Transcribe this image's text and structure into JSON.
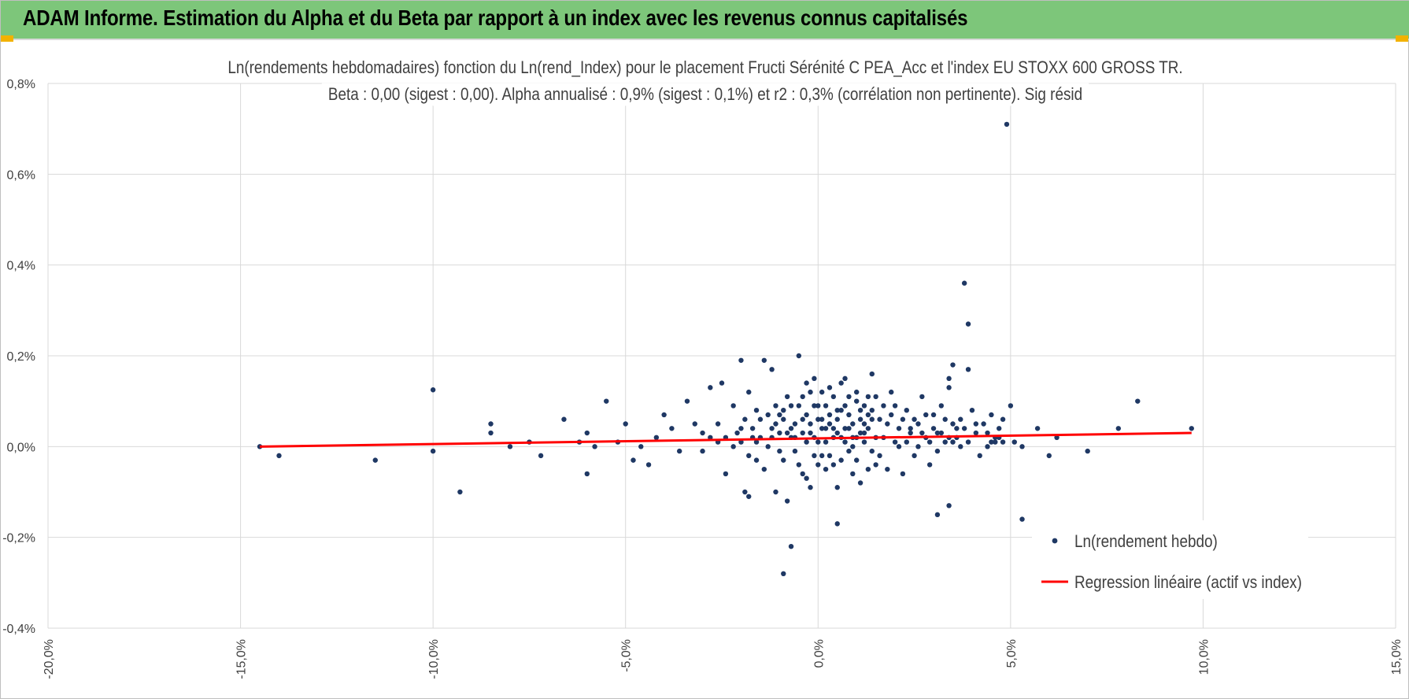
{
  "header": {
    "title": "ADAM Informe. Estimation du Alpha et du Beta par rapport à un index avec les revenus connus capitalisés"
  },
  "colors": {
    "banner": "#7dc67a",
    "point": "#1f3864",
    "regression": "#ff0000",
    "grid": "#d9d9d9",
    "text": "#404040"
  },
  "chart_data": {
    "type": "scatter",
    "title_lines": [
      "Ln(rendements hebdomadaires) fonction du Ln(rend_Index) pour le placement Fructi Sérénité C PEA_Acc et l'index EU STOXX 600 GROSS TR.",
      "Beta : 0,00 (sigest : 0,00).  Alpha annualisé : 0,9% (sigest : 0,1%) et r2 : 0,3% (corrélation non pertinente). Sig résid"
    ],
    "xlabel": "",
    "ylabel": "",
    "xlim": [
      -0.2,
      0.15
    ],
    "ylim": [
      -0.004,
      0.008
    ],
    "x_ticks": [
      -0.2,
      -0.15,
      -0.1,
      -0.05,
      0.0,
      0.05,
      0.1,
      0.15
    ],
    "x_tick_labels": [
      "-20,0%",
      "-15,0%",
      "-10,0%",
      "-5,0%",
      "0,0%",
      "5,0%",
      "10,0%",
      "15,0%"
    ],
    "y_ticks": [
      -0.004,
      -0.002,
      0.0,
      0.002,
      0.004,
      0.006,
      0.008
    ],
    "y_tick_labels": [
      "-0,4%",
      "-0,2%",
      "0,0%",
      "0,2%",
      "0,4%",
      "0,6%",
      "0,8%"
    ],
    "grid": true,
    "legend_position": "lower-right",
    "series": [
      {
        "name": "Ln(rendement hebdo)",
        "type": "scatter",
        "color": "#1f3864",
        "points": [
          [
            -0.145,
            0.0
          ],
          [
            -0.14,
            -0.0002
          ],
          [
            -0.115,
            -0.0003
          ],
          [
            -0.1,
            0.00125
          ],
          [
            -0.1,
            -0.0001
          ],
          [
            -0.093,
            -0.001
          ],
          [
            -0.085,
            0.0005
          ],
          [
            -0.085,
            0.0003
          ],
          [
            -0.08,
            0.0
          ],
          [
            -0.075,
            0.0001
          ],
          [
            -0.072,
            -0.0002
          ],
          [
            -0.066,
            0.0006
          ],
          [
            -0.062,
            0.0001
          ],
          [
            -0.06,
            0.0003
          ],
          [
            -0.06,
            -0.0006
          ],
          [
            -0.058,
            0.0
          ],
          [
            -0.055,
            0.001
          ],
          [
            -0.052,
            0.0001
          ],
          [
            -0.05,
            0.0005
          ],
          [
            -0.048,
            -0.0003
          ],
          [
            -0.046,
            0.0
          ],
          [
            -0.044,
            -0.0004
          ],
          [
            -0.042,
            0.0002
          ],
          [
            -0.04,
            0.0007
          ],
          [
            -0.038,
            0.0004
          ],
          [
            -0.036,
            -0.0001
          ],
          [
            -0.034,
            0.001
          ],
          [
            -0.032,
            0.0005
          ],
          [
            -0.03,
            0.0003
          ],
          [
            -0.028,
            0.0013
          ],
          [
            -0.026,
            0.0001
          ],
          [
            -0.024,
            -0.0006
          ],
          [
            -0.022,
            0.0009
          ],
          [
            -0.02,
            0.0004
          ],
          [
            -0.018,
            0.0012
          ],
          [
            -0.016,
            -0.0003
          ],
          [
            -0.015,
            0.0006
          ],
          [
            -0.014,
            0.0019
          ],
          [
            -0.013,
            0.0
          ],
          [
            -0.012,
            0.0017
          ],
          [
            -0.011,
            -0.001
          ],
          [
            -0.01,
            0.0003
          ],
          [
            -0.009,
            0.0008
          ],
          [
            -0.008,
            -0.0012
          ],
          [
            -0.007,
            0.0002
          ],
          [
            -0.006,
            0.0005
          ],
          [
            -0.005,
            0.002
          ],
          [
            -0.004,
            0.0011
          ],
          [
            -0.003,
            -0.0007
          ],
          [
            -0.002,
            0.0003
          ],
          [
            -0.001,
            0.0009
          ],
          [
            0.0,
            0.0001
          ],
          [
            0.001,
            0.0006
          ],
          [
            0.002,
            -0.0005
          ],
          [
            0.003,
            0.0013
          ],
          [
            0.004,
            0.0002
          ],
          [
            0.005,
            0.0008
          ],
          [
            0.006,
            -0.0003
          ],
          [
            0.007,
            0.0015
          ],
          [
            0.008,
            0.0004
          ],
          [
            0.009,
            0.0
          ],
          [
            0.01,
            0.001
          ],
          [
            0.011,
            -0.0008
          ],
          [
            0.012,
            0.0003
          ],
          [
            0.013,
            0.0007
          ],
          [
            0.014,
            0.0016
          ],
          [
            0.015,
            0.0002
          ],
          [
            0.016,
            -0.0002
          ],
          [
            0.017,
            0.0009
          ],
          [
            0.018,
            0.0005
          ],
          [
            0.019,
            0.0012
          ],
          [
            0.02,
            0.0001
          ],
          [
            0.021,
            0.0004
          ],
          [
            0.022,
            -0.0006
          ],
          [
            0.023,
            0.0008
          ],
          [
            0.024,
            0.0003
          ],
          [
            0.025,
            0.0006
          ],
          [
            0.026,
            0.0
          ],
          [
            0.027,
            0.0011
          ],
          [
            0.028,
            0.0002
          ],
          [
            0.029,
            -0.0004
          ],
          [
            0.03,
            0.0007
          ],
          [
            0.031,
            0.0003
          ],
          [
            0.032,
            0.0009
          ],
          [
            0.033,
            0.0001
          ],
          [
            0.034,
            0.0013
          ],
          [
            0.035,
            0.0005
          ],
          [
            0.036,
            0.0002
          ],
          [
            0.037,
            0.0006
          ],
          [
            0.038,
            0.0004
          ],
          [
            0.039,
            0.0001
          ],
          [
            0.04,
            0.0008
          ],
          [
            0.041,
            0.0003
          ],
          [
            0.042,
            -0.0002
          ],
          [
            0.043,
            0.0005
          ],
          [
            0.044,
            0.0
          ],
          [
            0.045,
            0.0007
          ],
          [
            0.046,
            0.0002
          ],
          [
            0.047,
            0.0004
          ],
          [
            0.048,
            0.0001
          ],
          [
            -0.004,
            -0.0006
          ],
          [
            -0.003,
            0.0014
          ],
          [
            -0.002,
            -0.0009
          ],
          [
            -0.001,
            0.0015
          ],
          [
            0.0,
            -0.0004
          ],
          [
            0.001,
            0.0012
          ],
          [
            0.002,
            0.0004
          ],
          [
            0.003,
            -0.0002
          ],
          [
            0.004,
            0.0011
          ],
          [
            0.005,
            -0.0009
          ],
          [
            0.006,
            0.0014
          ],
          [
            0.007,
            0.0001
          ],
          [
            0.008,
            0.0007
          ],
          [
            0.009,
            -0.0006
          ],
          [
            0.01,
            0.0012
          ],
          [
            0.011,
            0.0003
          ],
          [
            0.012,
            0.0009
          ],
          [
            0.013,
            -0.0005
          ],
          [
            0.014,
            0.0006
          ],
          [
            0.015,
            0.0011
          ],
          [
            -0.01,
            0.0007
          ],
          [
            -0.009,
            -0.0003
          ],
          [
            -0.008,
            0.0011
          ],
          [
            -0.007,
            0.0004
          ],
          [
            -0.006,
            -0.0001
          ],
          [
            -0.005,
            0.0009
          ],
          [
            -0.004,
            0.0003
          ],
          [
            -0.003,
            0.0007
          ],
          [
            -0.002,
            0.0012
          ],
          [
            -0.001,
            0.0002
          ],
          [
            0.0,
            0.0006
          ],
          [
            0.001,
            -0.0002
          ],
          [
            0.002,
            0.0009
          ],
          [
            0.003,
            0.0005
          ],
          [
            0.004,
            -0.0004
          ],
          [
            0.005,
            0.0003
          ],
          [
            0.006,
            0.0008
          ],
          [
            0.007,
            0.0004
          ],
          [
            0.008,
            0.0011
          ],
          [
            0.009,
            0.0002
          ],
          [
            0.01,
            -0.0003
          ],
          [
            0.011,
            0.0008
          ],
          [
            0.012,
            0.0005
          ],
          [
            0.013,
            0.0011
          ],
          [
            0.014,
            -0.0001
          ],
          [
            -0.012,
            0.0002
          ],
          [
            -0.011,
            0.0005
          ],
          [
            -0.01,
            -0.0001
          ],
          [
            -0.009,
            0.0006
          ],
          [
            -0.008,
            0.0003
          ],
          [
            -0.007,
            0.0009
          ],
          [
            -0.006,
            0.0002
          ],
          [
            -0.005,
            -0.0004
          ],
          [
            -0.004,
            0.0006
          ],
          [
            -0.003,
            0.0001
          ],
          [
            -0.002,
            0.0005
          ],
          [
            -0.001,
            -0.0002
          ],
          [
            0.0,
            0.0009
          ],
          [
            0.001,
            0.0004
          ],
          [
            0.002,
            0.0001
          ],
          [
            0.003,
            0.0007
          ],
          [
            0.004,
            0.0004
          ],
          [
            0.005,
            0.0006
          ],
          [
            0.006,
            0.0002
          ],
          [
            0.007,
            0.0009
          ],
          [
            0.008,
            -0.0001
          ],
          [
            0.009,
            0.0005
          ],
          [
            0.01,
            0.0002
          ],
          [
            0.011,
            0.0006
          ],
          [
            0.012,
            0.0001
          ],
          [
            0.013,
            0.0004
          ],
          [
            0.014,
            0.0008
          ],
          [
            0.015,
            -0.0004
          ],
          [
            0.016,
            0.0006
          ],
          [
            0.017,
            0.0002
          ],
          [
            0.018,
            -0.0005
          ],
          [
            0.019,
            0.0007
          ],
          [
            0.02,
            0.0009
          ],
          [
            0.021,
            0.0
          ],
          [
            0.022,
            0.0006
          ],
          [
            0.023,
            0.0001
          ],
          [
            0.024,
            0.0004
          ],
          [
            0.025,
            -0.0002
          ],
          [
            0.026,
            0.0005
          ],
          [
            0.027,
            0.0003
          ],
          [
            0.028,
            0.0007
          ],
          [
            0.029,
            0.0001
          ],
          [
            0.03,
            0.0004
          ],
          [
            0.031,
            -0.0001
          ],
          [
            0.032,
            0.0003
          ],
          [
            0.033,
            0.0006
          ],
          [
            0.034,
            0.0002
          ],
          [
            0.035,
            0.0001
          ],
          [
            0.036,
            0.0004
          ],
          [
            0.037,
            0.0
          ],
          [
            -0.02,
            0.0001
          ],
          [
            -0.019,
            0.0006
          ],
          [
            -0.018,
            -0.0002
          ],
          [
            -0.017,
            0.0004
          ],
          [
            -0.016,
            0.0008
          ],
          [
            -0.015,
            0.0002
          ],
          [
            -0.014,
            -0.0005
          ],
          [
            -0.013,
            0.0007
          ],
          [
            -0.012,
            0.0004
          ],
          [
            -0.011,
            0.0009
          ],
          [
            -0.03,
            -0.0001
          ],
          [
            -0.028,
            0.0002
          ],
          [
            -0.026,
            0.0005
          ],
          [
            -0.024,
            0.0002
          ],
          [
            -0.022,
            0.0
          ],
          [
            -0.021,
            0.0003
          ],
          [
            -0.019,
            -0.001
          ],
          [
            -0.018,
            -0.0011
          ],
          [
            -0.017,
            0.0002
          ],
          [
            -0.016,
            0.0001
          ],
          [
            -0.009,
            -0.0028
          ],
          [
            -0.007,
            -0.0022
          ],
          [
            0.005,
            -0.0017
          ],
          [
            0.031,
            -0.0015
          ],
          [
            0.034,
            -0.0013
          ],
          [
            0.053,
            -0.0016
          ],
          [
            0.06,
            -0.0002
          ],
          [
            0.038,
            0.0036
          ],
          [
            0.039,
            0.0027
          ],
          [
            0.049,
            0.0071
          ],
          [
            0.035,
            0.0018
          ],
          [
            0.039,
            0.0017
          ],
          [
            0.034,
            0.0015
          ],
          [
            0.041,
            0.0005
          ],
          [
            0.044,
            0.0003
          ],
          [
            0.048,
            0.0006
          ],
          [
            0.05,
            0.0009
          ],
          [
            0.057,
            0.0004
          ],
          [
            0.062,
            0.0002
          ],
          [
            0.07,
            -0.0001
          ],
          [
            0.078,
            0.0004
          ],
          [
            0.083,
            0.001
          ],
          [
            0.097,
            0.0004
          ],
          [
            -0.02,
            0.0019
          ],
          [
            -0.025,
            0.0014
          ],
          [
            0.051,
            0.0001
          ],
          [
            0.053,
            0.0
          ],
          [
            0.045,
            0.0001
          ],
          [
            0.047,
            0.0002
          ],
          [
            0.046,
            0.0001
          ]
        ]
      },
      {
        "name": "Regression linéaire (actif vs index)",
        "type": "line",
        "color": "#ff0000",
        "x": [
          -0.145,
          0.097
        ],
        "y": [
          0.0,
          0.0003
        ]
      }
    ]
  }
}
